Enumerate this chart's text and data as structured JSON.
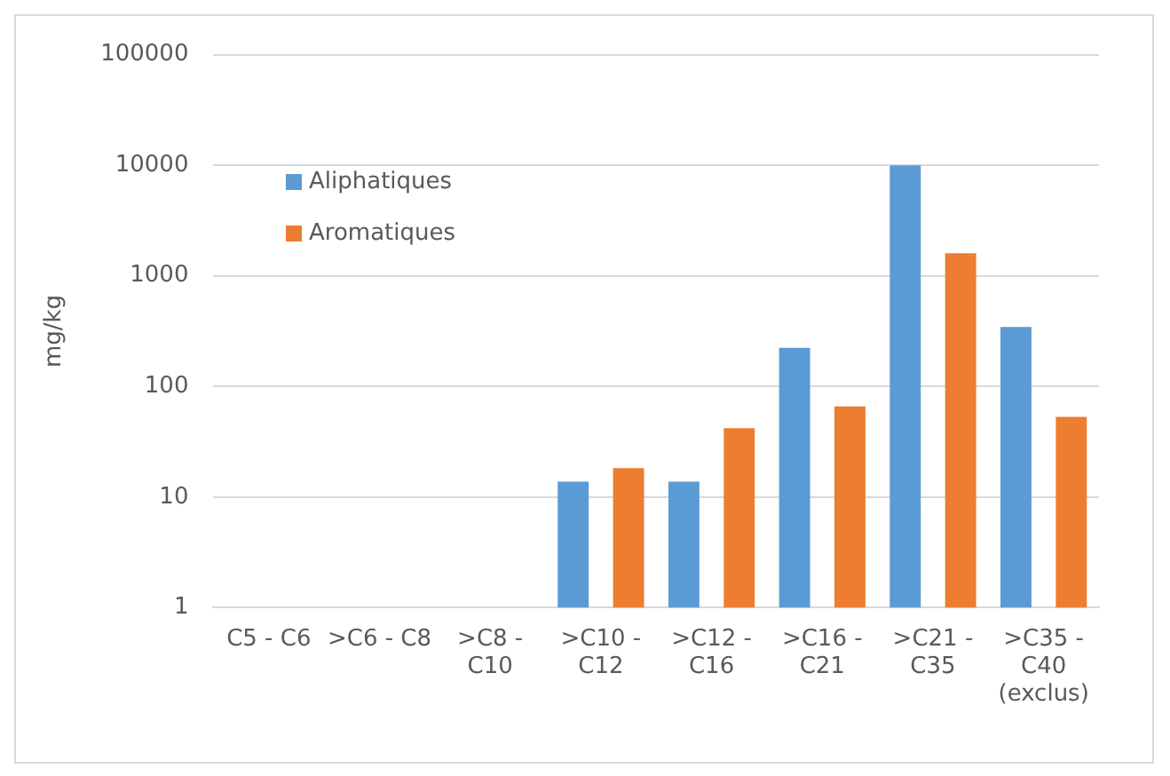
{
  "chart_data": {
    "type": "bar",
    "ylabel": "mg/kg",
    "log": true,
    "ylim": [
      1,
      100000
    ],
    "yticks": [
      1,
      10,
      100,
      1000,
      10000,
      100000
    ],
    "grid": "y",
    "legend": "top left",
    "categories": [
      "C5 - C6",
      ">C6 - C8",
      ">C8 - C10",
      ">C10 - C12",
      ">C12 - C16",
      ">C16 - C21",
      ">C21 - C35",
      ">C35 - C40 (exclus)"
    ],
    "series": [
      {
        "name": "Aliphatiques",
        "color": "#5b9bd5",
        "values": [
          null,
          null,
          null,
          13.8,
          13.8,
          224,
          10000,
          345
        ]
      },
      {
        "name": "Aromatiques",
        "color": "#ed7d31",
        "values": [
          null,
          null,
          null,
          18.3,
          42,
          66,
          1600,
          53
        ]
      }
    ]
  }
}
